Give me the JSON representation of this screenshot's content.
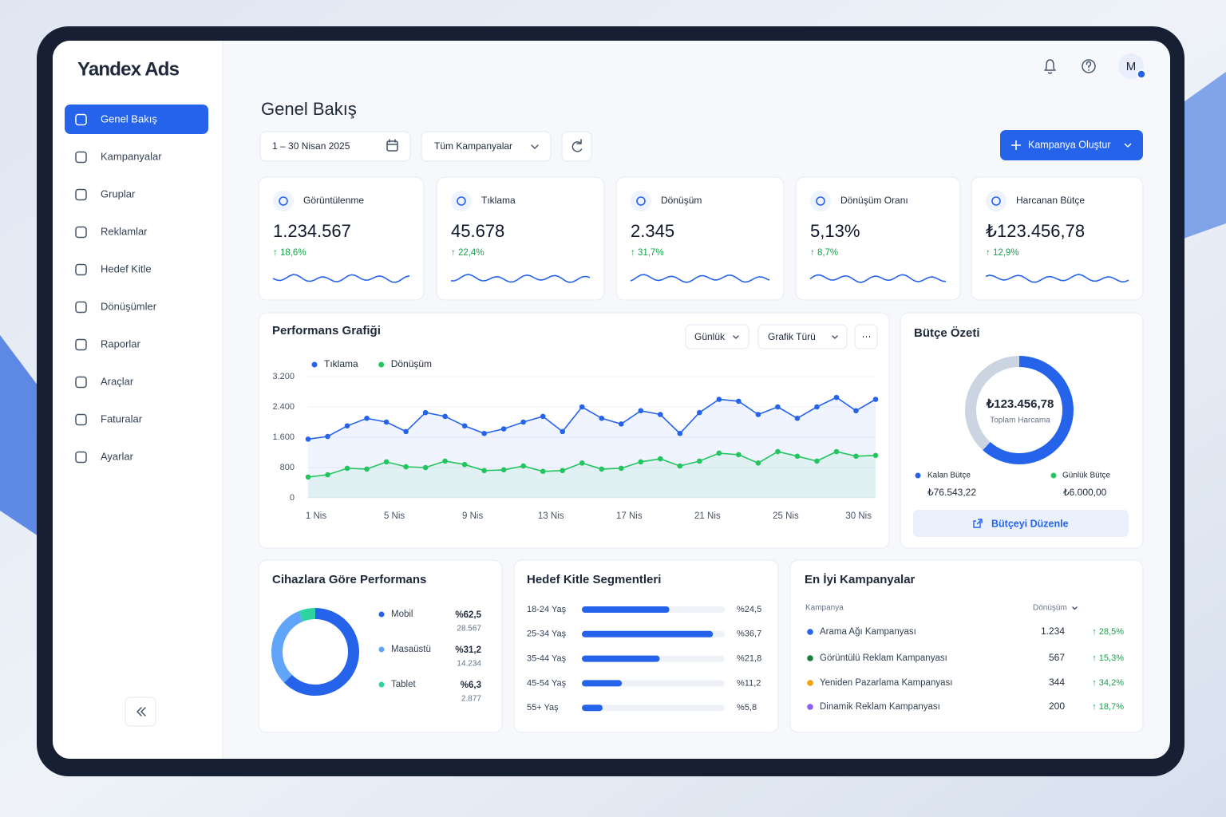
{
  "sidebar": {
    "brand": "Yandex Ads",
    "nav": [
      "Genel Bakış",
      "Kampanyalar",
      "Gruplar",
      "Reklamlar",
      "Hedef Kitle",
      "Dönüşümler",
      "Raporlar",
      "Araçlar",
      "Faturalar",
      "Ayarlar"
    ]
  },
  "header": {
    "avatar": "M"
  },
  "page": {
    "title": "Genel Bakış",
    "date_range": "1 – 30 Nisan 2025",
    "campaign_filter": "Tüm Kampanyalar",
    "create_button": "Kampanya Oluştur"
  },
  "kpis": [
    {
      "label": "Görüntülenme",
      "value": "1.234.567",
      "change": "↑ 18,6%"
    },
    {
      "label": "Tıklama",
      "value": "45.678",
      "change": "↑ 22,4%"
    },
    {
      "label": "Dönüşüm",
      "value": "2.345",
      "change": "↑ 31,7%"
    },
    {
      "label": "Dönüşüm Oranı",
      "value": "5,13%",
      "change": "↑ 8,7%"
    },
    {
      "label": "Harcanan Bütçe",
      "value": "₺123.456,78",
      "change": "↑ 12,9%"
    }
  ],
  "performance": {
    "type": "line",
    "title": "Performans Grafiği",
    "interval": "Günlük",
    "chart_type": "Grafik Türü",
    "categories": [
      "1 Nis",
      null,
      null,
      null,
      "5 Nis",
      null,
      null,
      null,
      "9 Nis",
      null,
      null,
      null,
      "13 Nis",
      null,
      null,
      null,
      "17 Nis",
      null,
      null,
      null,
      "21 Nis",
      null,
      null,
      null,
      "25 Nis",
      null,
      null,
      null,
      null,
      "30 Nis"
    ],
    "series": [
      {
        "name": "Tıklama",
        "color": "#2563eb",
        "values": [
          1550,
          1620,
          1900,
          2100,
          2000,
          1750,
          2250,
          2150,
          1900,
          1700,
          1820,
          2000,
          2150,
          1750,
          2400,
          2100,
          1950,
          2300,
          2200,
          1700,
          2250,
          2600,
          2550,
          2200,
          2400,
          2100,
          2400,
          2650,
          2300,
          2600
        ]
      },
      {
        "name": "Dönüşüm",
        "color": "#22c55e",
        "values": [
          550,
          610,
          780,
          760,
          950,
          820,
          800,
          970,
          880,
          720,
          740,
          840,
          700,
          720,
          920,
          760,
          780,
          950,
          1030,
          840,
          970,
          1180,
          1140,
          920,
          1220,
          1100,
          970,
          1220,
          1100,
          1120
        ]
      }
    ],
    "ylim": [
      0,
      3200
    ],
    "yticks": [
      0,
      800,
      {
        "value": 1600,
        "label": "1.600"
      },
      {
        "value": 2400,
        "label": "2.400"
      },
      {
        "value": 3200,
        "label": "3.200"
      }
    ],
    "grid": true
  },
  "budget": {
    "type": "donut",
    "title": "Bütçe Özeti",
    "spent": {
      "value": 123456.78,
      "label": "₺123.456,78",
      "caption": "Toplam Harcama"
    },
    "remaining": {
      "name": "Kalan Bütçe",
      "value": 76543.22,
      "label": "₺76.543,22",
      "color": "#2563eb"
    },
    "daily": {
      "name": "Günlük Bütçe",
      "label": "₺6.000,00",
      "color": "#22c55e"
    },
    "button": "Bütçeyi Düzenle"
  },
  "devices": {
    "type": "donut",
    "title": "Cihazlara Göre Performans",
    "items": [
      {
        "name": "Mobil",
        "value": 62.5,
        "value_label": "%62,5",
        "count": "28.567",
        "color": "#2563eb"
      },
      {
        "name": "Masaüstü",
        "value": 31.2,
        "value_label": "%31,2",
        "count": "14.234",
        "color": "#60a5fa"
      },
      {
        "name": "Tablet",
        "value": 6.3,
        "value_label": "%6,3",
        "count": "2.877",
        "color": "#2dd4a0"
      }
    ]
  },
  "segments": {
    "type": "bar",
    "title": "Hedef Kitle Segmentleri",
    "xlim": [
      0,
      40
    ],
    "color": "#2563eb",
    "items": [
      {
        "name": "18-24 Yaş",
        "value": 24.5,
        "value_label": "%24,5"
      },
      {
        "name": "25-34 Yaş",
        "value": 36.7,
        "value_label": "%36,7"
      },
      {
        "name": "35-44 Yaş",
        "value": 21.8,
        "value_label": "%21,8"
      },
      {
        "name": "45-54 Yaş",
        "value": 11.2,
        "value_label": "%11,2"
      },
      {
        "name": "55+ Yaş",
        "value": 5.8,
        "value_label": "%5,8"
      }
    ]
  },
  "campaigns": {
    "title": "En İyi Kampanyalar",
    "columns": [
      "Kampanya",
      "Dönüşüm"
    ],
    "rows": [
      {
        "name": "Arama Ağı Kampanyası",
        "conversions": "1.234",
        "change": "↑ 28,5%",
        "color": "#2563eb"
      },
      {
        "name": "Görüntülü Reklam Kampanyası",
        "conversions": "567",
        "change": "↑ 15,3%",
        "color": "#15803d"
      },
      {
        "name": "Yeniden Pazarlama Kampanyası",
        "conversions": "344",
        "change": "↑ 34,2%",
        "color": "#f59e0b"
      },
      {
        "name": "Dinamik Reklam Kampanyası",
        "conversions": "200",
        "change": "↑ 18,7%",
        "color": "#8b5cf6"
      }
    ]
  }
}
